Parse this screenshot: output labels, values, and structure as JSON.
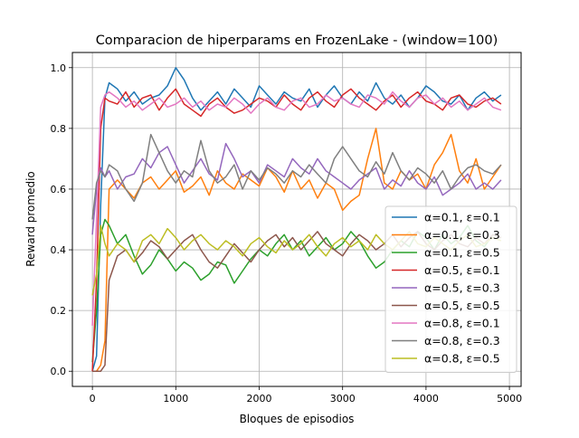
{
  "chart_data": {
    "type": "line",
    "title": "Comparacion de hiperparams en FrozenLake - (window=100)",
    "xlabel": "Bloques de episodios",
    "ylabel": "Reward promedio",
    "xlim": [
      -240,
      5140
    ],
    "ylim": [
      -0.05,
      1.05
    ],
    "xticks": [
      0,
      1000,
      2000,
      3000,
      4000,
      5000
    ],
    "yticks": [
      0.0,
      0.2,
      0.4,
      0.6,
      0.8,
      1.0
    ],
    "xtick_labels": [
      "0",
      "1000",
      "2000",
      "3000",
      "4000",
      "5000"
    ],
    "ytick_labels": [
      "0.0",
      "0.2",
      "0.4",
      "0.6",
      "0.8",
      "1.0"
    ],
    "grid": true,
    "legend_position": "lower-right",
    "series": [
      {
        "name": "α=0.1, ε=0.1",
        "color": "#1f77b4",
        "x": [
          0,
          50,
          100,
          150,
          200,
          300,
          400,
          500,
          600,
          700,
          800,
          900,
          1000,
          1100,
          1200,
          1300,
          1400,
          1500,
          1600,
          1700,
          1800,
          1900,
          2000,
          2100,
          2200,
          2300,
          2400,
          2500,
          2600,
          2700,
          2800,
          2900,
          3000,
          3100,
          3200,
          3300,
          3400,
          3500,
          3600,
          3700,
          3800,
          3900,
          4000,
          4100,
          4200,
          4300,
          4400,
          4500,
          4600,
          4700,
          4800,
          4900
        ],
        "values": [
          0.0,
          0.05,
          0.55,
          0.9,
          0.95,
          0.93,
          0.89,
          0.92,
          0.88,
          0.9,
          0.91,
          0.94,
          1.0,
          0.96,
          0.9,
          0.86,
          0.89,
          0.92,
          0.88,
          0.93,
          0.9,
          0.87,
          0.94,
          0.91,
          0.88,
          0.92,
          0.9,
          0.89,
          0.93,
          0.87,
          0.91,
          0.94,
          0.9,
          0.88,
          0.92,
          0.89,
          0.95,
          0.9,
          0.88,
          0.91,
          0.87,
          0.9,
          0.94,
          0.92,
          0.89,
          0.88,
          0.91,
          0.86,
          0.9,
          0.92,
          0.89,
          0.91
        ]
      },
      {
        "name": "α=0.1, ε=0.3",
        "color": "#ff7f0e",
        "x": [
          0,
          50,
          100,
          150,
          200,
          300,
          400,
          500,
          600,
          700,
          800,
          900,
          1000,
          1100,
          1200,
          1300,
          1400,
          1500,
          1600,
          1700,
          1800,
          1900,
          2000,
          2100,
          2200,
          2300,
          2400,
          2500,
          2600,
          2700,
          2800,
          2900,
          3000,
          3100,
          3200,
          3300,
          3400,
          3500,
          3600,
          3700,
          3800,
          3900,
          4000,
          4100,
          4200,
          4300,
          4400,
          4500,
          4600,
          4700,
          4800,
          4900
        ],
        "values": [
          0.0,
          0.0,
          0.02,
          0.1,
          0.6,
          0.63,
          0.6,
          0.57,
          0.62,
          0.64,
          0.6,
          0.63,
          0.66,
          0.59,
          0.61,
          0.64,
          0.58,
          0.66,
          0.62,
          0.6,
          0.65,
          0.63,
          0.61,
          0.67,
          0.64,
          0.59,
          0.66,
          0.6,
          0.63,
          0.57,
          0.62,
          0.6,
          0.53,
          0.56,
          0.58,
          0.7,
          0.8,
          0.62,
          0.6,
          0.66,
          0.63,
          0.65,
          0.6,
          0.68,
          0.72,
          0.78,
          0.66,
          0.62,
          0.7,
          0.6,
          0.64,
          0.68
        ]
      },
      {
        "name": "α=0.1, ε=0.5",
        "color": "#2ca02c",
        "x": [
          0,
          50,
          100,
          150,
          200,
          300,
          400,
          500,
          600,
          700,
          800,
          900,
          1000,
          1100,
          1200,
          1300,
          1400,
          1500,
          1600,
          1700,
          1800,
          1900,
          2000,
          2100,
          2200,
          2300,
          2400,
          2500,
          2600,
          2700,
          2800,
          2900,
          3000,
          3100,
          3200,
          3300,
          3400,
          3500,
          3600,
          3700,
          3800,
          3900,
          4000,
          4100,
          4200,
          4300,
          4400,
          4500,
          4600,
          4700,
          4800,
          4900
        ],
        "values": [
          0.03,
          0.2,
          0.45,
          0.5,
          0.48,
          0.42,
          0.45,
          0.38,
          0.32,
          0.35,
          0.4,
          0.37,
          0.33,
          0.36,
          0.34,
          0.3,
          0.32,
          0.36,
          0.35,
          0.29,
          0.33,
          0.37,
          0.4,
          0.38,
          0.42,
          0.45,
          0.4,
          0.43,
          0.38,
          0.41,
          0.44,
          0.4,
          0.42,
          0.46,
          0.43,
          0.38,
          0.34,
          0.36,
          0.4,
          0.43,
          0.41,
          0.46,
          0.44,
          0.4,
          0.45,
          0.42,
          0.44,
          0.48,
          0.43,
          0.41,
          0.45,
          0.44
        ]
      },
      {
        "name": "α=0.5, ε=0.1",
        "color": "#d62728",
        "x": [
          0,
          50,
          100,
          150,
          200,
          300,
          400,
          500,
          600,
          700,
          800,
          900,
          1000,
          1100,
          1200,
          1300,
          1400,
          1500,
          1600,
          1700,
          1800,
          1900,
          2000,
          2100,
          2200,
          2300,
          2400,
          2500,
          2600,
          2700,
          2800,
          2900,
          3000,
          3100,
          3200,
          3300,
          3400,
          3500,
          3600,
          3700,
          3800,
          3900,
          4000,
          4100,
          4200,
          4300,
          4400,
          4500,
          4600,
          4700,
          4800,
          4900
        ],
        "values": [
          0.0,
          0.3,
          0.8,
          0.9,
          0.89,
          0.88,
          0.92,
          0.87,
          0.9,
          0.91,
          0.86,
          0.9,
          0.93,
          0.88,
          0.86,
          0.84,
          0.88,
          0.9,
          0.87,
          0.85,
          0.86,
          0.88,
          0.9,
          0.89,
          0.87,
          0.91,
          0.88,
          0.86,
          0.9,
          0.92,
          0.89,
          0.87,
          0.91,
          0.93,
          0.9,
          0.88,
          0.86,
          0.89,
          0.91,
          0.87,
          0.9,
          0.92,
          0.89,
          0.88,
          0.86,
          0.9,
          0.91,
          0.88,
          0.87,
          0.89,
          0.9,
          0.88
        ]
      },
      {
        "name": "α=0.5, ε=0.3",
        "color": "#9467bd",
        "x": [
          0,
          50,
          100,
          150,
          200,
          300,
          400,
          500,
          600,
          700,
          800,
          900,
          1000,
          1100,
          1200,
          1300,
          1400,
          1500,
          1600,
          1700,
          1800,
          1900,
          2000,
          2100,
          2200,
          2300,
          2400,
          2500,
          2600,
          2700,
          2800,
          2900,
          3000,
          3100,
          3200,
          3300,
          3400,
          3500,
          3600,
          3700,
          3800,
          3900,
          4000,
          4100,
          4200,
          4300,
          4400,
          4500,
          4600,
          4700,
          4800,
          4900
        ],
        "values": [
          0.45,
          0.6,
          0.67,
          0.64,
          0.66,
          0.6,
          0.64,
          0.65,
          0.7,
          0.67,
          0.72,
          0.74,
          0.68,
          0.62,
          0.66,
          0.7,
          0.65,
          0.63,
          0.75,
          0.7,
          0.64,
          0.66,
          0.62,
          0.68,
          0.66,
          0.64,
          0.7,
          0.67,
          0.65,
          0.7,
          0.66,
          0.64,
          0.62,
          0.6,
          0.63,
          0.65,
          0.67,
          0.6,
          0.63,
          0.61,
          0.66,
          0.62,
          0.6,
          0.64,
          0.58,
          0.6,
          0.62,
          0.65,
          0.6,
          0.62,
          0.6,
          0.63
        ]
      },
      {
        "name": "α=0.5, ε=0.5",
        "color": "#8c564b",
        "x": [
          0,
          50,
          100,
          150,
          200,
          300,
          400,
          500,
          600,
          700,
          800,
          900,
          1000,
          1100,
          1200,
          1300,
          1400,
          1500,
          1600,
          1700,
          1800,
          1900,
          2000,
          2100,
          2200,
          2300,
          2400,
          2500,
          2600,
          2700,
          2800,
          2900,
          3000,
          3100,
          3200,
          3300,
          3400,
          3500,
          3600,
          3700,
          3800,
          3900,
          4000,
          4100,
          4200,
          4300,
          4400,
          4500,
          4600,
          4700,
          4800,
          4900
        ],
        "values": [
          0.0,
          0.0,
          0.0,
          0.02,
          0.3,
          0.38,
          0.4,
          0.36,
          0.39,
          0.43,
          0.41,
          0.37,
          0.4,
          0.43,
          0.45,
          0.4,
          0.36,
          0.34,
          0.38,
          0.42,
          0.39,
          0.36,
          0.4,
          0.43,
          0.45,
          0.41,
          0.44,
          0.4,
          0.43,
          0.46,
          0.42,
          0.4,
          0.38,
          0.42,
          0.45,
          0.43,
          0.4,
          0.42,
          0.45,
          0.41,
          0.44,
          0.46,
          0.42,
          0.4,
          0.43,
          0.45,
          0.42,
          0.41,
          0.44,
          0.42,
          0.45,
          0.44
        ]
      },
      {
        "name": "α=0.8, ε=0.1",
        "color": "#e377c2",
        "x": [
          0,
          50,
          100,
          150,
          200,
          300,
          400,
          500,
          600,
          700,
          800,
          900,
          1000,
          1100,
          1200,
          1300,
          1400,
          1500,
          1600,
          1700,
          1800,
          1900,
          2000,
          2100,
          2200,
          2300,
          2400,
          2500,
          2600,
          2700,
          2800,
          2900,
          3000,
          3100,
          3200,
          3300,
          3400,
          3500,
          3600,
          3700,
          3800,
          3900,
          4000,
          4100,
          4200,
          4300,
          4400,
          4500,
          4600,
          4700,
          4800,
          4900
        ],
        "values": [
          0.15,
          0.5,
          0.87,
          0.91,
          0.92,
          0.9,
          0.87,
          0.89,
          0.86,
          0.88,
          0.9,
          0.87,
          0.88,
          0.9,
          0.87,
          0.89,
          0.86,
          0.88,
          0.87,
          0.9,
          0.88,
          0.85,
          0.88,
          0.9,
          0.87,
          0.86,
          0.89,
          0.9,
          0.87,
          0.88,
          0.91,
          0.89,
          0.9,
          0.88,
          0.87,
          0.91,
          0.9,
          0.88,
          0.92,
          0.89,
          0.87,
          0.9,
          0.91,
          0.88,
          0.9,
          0.87,
          0.89,
          0.86,
          0.88,
          0.9,
          0.87,
          0.86
        ]
      },
      {
        "name": "α=0.8, ε=0.3",
        "color": "#7f7f7f",
        "x": [
          0,
          50,
          100,
          150,
          200,
          300,
          400,
          500,
          600,
          700,
          800,
          900,
          1000,
          1100,
          1200,
          1300,
          1400,
          1500,
          1600,
          1700,
          1800,
          1900,
          2000,
          2100,
          2200,
          2300,
          2400,
          2500,
          2600,
          2700,
          2800,
          2900,
          3000,
          3100,
          3200,
          3300,
          3400,
          3500,
          3600,
          3700,
          3800,
          3900,
          4000,
          4100,
          4200,
          4300,
          4400,
          4500,
          4600,
          4700,
          4800,
          4900
        ],
        "values": [
          0.5,
          0.62,
          0.66,
          0.64,
          0.68,
          0.66,
          0.6,
          0.56,
          0.62,
          0.78,
          0.72,
          0.66,
          0.62,
          0.66,
          0.64,
          0.76,
          0.66,
          0.62,
          0.64,
          0.68,
          0.6,
          0.66,
          0.63,
          0.67,
          0.65,
          0.62,
          0.66,
          0.64,
          0.68,
          0.65,
          0.62,
          0.7,
          0.74,
          0.7,
          0.66,
          0.64,
          0.69,
          0.65,
          0.72,
          0.66,
          0.63,
          0.67,
          0.65,
          0.62,
          0.66,
          0.6,
          0.64,
          0.67,
          0.68,
          0.66,
          0.65,
          0.68
        ]
      },
      {
        "name": "α=0.8, ε=0.5",
        "color": "#bcbd22",
        "x": [
          0,
          50,
          100,
          150,
          200,
          300,
          400,
          500,
          600,
          700,
          800,
          900,
          1000,
          1100,
          1200,
          1300,
          1400,
          1500,
          1600,
          1700,
          1800,
          1900,
          2000,
          2100,
          2200,
          2300,
          2400,
          2500,
          2600,
          2700,
          2800,
          2900,
          3000,
          3100,
          3200,
          3300,
          3400,
          3500,
          3600,
          3700,
          3800,
          3900,
          4000,
          4100,
          4200,
          4300,
          4400,
          4500,
          4600,
          4700,
          4800,
          4900
        ],
        "values": [
          0.25,
          0.32,
          0.48,
          0.42,
          0.38,
          0.42,
          0.4,
          0.36,
          0.43,
          0.45,
          0.42,
          0.47,
          0.44,
          0.4,
          0.43,
          0.45,
          0.42,
          0.4,
          0.43,
          0.41,
          0.38,
          0.42,
          0.44,
          0.41,
          0.39,
          0.43,
          0.4,
          0.42,
          0.45,
          0.41,
          0.38,
          0.42,
          0.44,
          0.41,
          0.43,
          0.4,
          0.45,
          0.42,
          0.4,
          0.43,
          0.46,
          0.42,
          0.41,
          0.44,
          0.42,
          0.4,
          0.43,
          0.45,
          0.41,
          0.42,
          0.44,
          0.43
        ]
      }
    ]
  }
}
